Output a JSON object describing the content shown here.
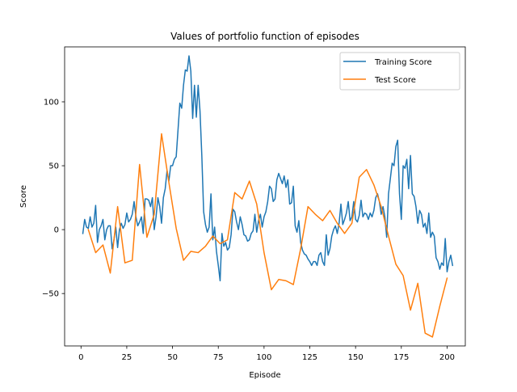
{
  "chart_data": {
    "type": "line",
    "title": "Values of portfolio function of episodes",
    "xlabel": "Episode",
    "ylabel": "Score",
    "xlim": [
      -8.95,
      209.95
    ],
    "ylim": [
      -91.0,
      143.0
    ],
    "xticks": [
      0,
      25,
      50,
      75,
      100,
      125,
      150,
      175,
      200
    ],
    "yticks": [
      -50,
      0,
      50,
      100
    ],
    "grid": false,
    "legend_position": "upper right",
    "series": [
      {
        "name": "Training Score",
        "color": "#1f77b4",
        "points": [
          [
            1,
            -3
          ],
          [
            2,
            8
          ],
          [
            3,
            2
          ],
          [
            4,
            1
          ],
          [
            5,
            10
          ],
          [
            6,
            2
          ],
          [
            7,
            5
          ],
          [
            8,
            19
          ],
          [
            9,
            -10
          ],
          [
            10,
            0
          ],
          [
            11,
            3
          ],
          [
            12,
            8
          ],
          [
            13,
            -8
          ],
          [
            14,
            0
          ],
          [
            15,
            3
          ],
          [
            16,
            3
          ],
          [
            17,
            -15
          ],
          [
            18,
            -8
          ],
          [
            19,
            2
          ],
          [
            20,
            -14
          ],
          [
            21,
            0
          ],
          [
            22,
            5
          ],
          [
            23,
            1
          ],
          [
            24,
            4
          ],
          [
            25,
            13
          ],
          [
            26,
            6
          ],
          [
            27,
            8
          ],
          [
            28,
            12
          ],
          [
            29,
            22
          ],
          [
            30,
            10
          ],
          [
            31,
            3
          ],
          [
            32,
            6
          ],
          [
            33,
            10
          ],
          [
            34,
            -3
          ],
          [
            35,
            24
          ],
          [
            36,
            24
          ],
          [
            37,
            23
          ],
          [
            38,
            18
          ],
          [
            39,
            25
          ],
          [
            40,
            0
          ],
          [
            41,
            10
          ],
          [
            42,
            25
          ],
          [
            43,
            18
          ],
          [
            44,
            5
          ],
          [
            45,
            25
          ],
          [
            46,
            32
          ],
          [
            47,
            46
          ],
          [
            48,
            38
          ],
          [
            49,
            50
          ],
          [
            50,
            50
          ],
          [
            51,
            55
          ],
          [
            52,
            57
          ],
          [
            53,
            78
          ],
          [
            54,
            99
          ],
          [
            55,
            95
          ],
          [
            56,
            113
          ],
          [
            57,
            125
          ],
          [
            58,
            124
          ],
          [
            59,
            136
          ],
          [
            60,
            124
          ],
          [
            61,
            87
          ],
          [
            62,
            113
          ],
          [
            63,
            88
          ],
          [
            64,
            113
          ],
          [
            65,
            93
          ],
          [
            66,
            58
          ],
          [
            67,
            14
          ],
          [
            68,
            4
          ],
          [
            69,
            -2
          ],
          [
            70,
            2
          ],
          [
            71,
            28
          ],
          [
            72,
            -8
          ],
          [
            73,
            2
          ],
          [
            74,
            -17
          ],
          [
            75,
            -28
          ],
          [
            76,
            -40
          ],
          [
            77,
            -3
          ],
          [
            78,
            -13
          ],
          [
            79,
            -10
          ],
          [
            80,
            -16
          ],
          [
            81,
            -14
          ],
          [
            82,
            -4
          ],
          [
            83,
            16
          ],
          [
            84,
            14
          ],
          [
            85,
            6
          ],
          [
            86,
            0
          ],
          [
            87,
            10
          ],
          [
            88,
            4
          ],
          [
            89,
            -4
          ],
          [
            90,
            -5
          ],
          [
            91,
            -9
          ],
          [
            92,
            -8
          ],
          [
            93,
            -3
          ],
          [
            94,
            -1
          ],
          [
            95,
            12
          ],
          [
            96,
            -2
          ],
          [
            97,
            7
          ],
          [
            98,
            12
          ],
          [
            99,
            2
          ],
          [
            100,
            10
          ],
          [
            101,
            14
          ],
          [
            102,
            22
          ],
          [
            103,
            34
          ],
          [
            104,
            32
          ],
          [
            105,
            22
          ],
          [
            106,
            24
          ],
          [
            107,
            39
          ],
          [
            108,
            44
          ],
          [
            109,
            40
          ],
          [
            110,
            36
          ],
          [
            111,
            42
          ],
          [
            112,
            33
          ],
          [
            113,
            39
          ],
          [
            114,
            20
          ],
          [
            115,
            21
          ],
          [
            116,
            34
          ],
          [
            117,
            3
          ],
          [
            118,
            -2
          ],
          [
            119,
            7
          ],
          [
            120,
            -10
          ],
          [
            121,
            -16
          ],
          [
            122,
            -19
          ],
          [
            123,
            -20
          ],
          [
            124,
            -23
          ],
          [
            125,
            -25
          ],
          [
            126,
            -28
          ],
          [
            127,
            -25
          ],
          [
            128,
            -25
          ],
          [
            129,
            -28
          ],
          [
            130,
            -20
          ],
          [
            131,
            -18
          ],
          [
            132,
            -25
          ],
          [
            133,
            -28
          ],
          [
            134,
            -4
          ],
          [
            135,
            -20
          ],
          [
            136,
            -15
          ],
          [
            137,
            -5
          ],
          [
            138,
            0
          ],
          [
            139,
            3
          ],
          [
            140,
            -3
          ],
          [
            141,
            5
          ],
          [
            142,
            20
          ],
          [
            143,
            4
          ],
          [
            144,
            8
          ],
          [
            145,
            13
          ],
          [
            146,
            22
          ],
          [
            147,
            7
          ],
          [
            148,
            10
          ],
          [
            149,
            22
          ],
          [
            150,
            8
          ],
          [
            151,
            6
          ],
          [
            152,
            11
          ],
          [
            153,
            23
          ],
          [
            154,
            10
          ],
          [
            155,
            13
          ],
          [
            156,
            12
          ],
          [
            157,
            8
          ],
          [
            158,
            13
          ],
          [
            159,
            10
          ],
          [
            160,
            15
          ],
          [
            161,
            25
          ],
          [
            162,
            28
          ],
          [
            163,
            22
          ],
          [
            164,
            12
          ],
          [
            165,
            18
          ],
          [
            166,
            10
          ],
          [
            167,
            -6
          ],
          [
            168,
            28
          ],
          [
            169,
            40
          ],
          [
            170,
            52
          ],
          [
            171,
            50
          ],
          [
            172,
            65
          ],
          [
            173,
            70
          ],
          [
            174,
            28
          ],
          [
            175,
            8
          ],
          [
            176,
            50
          ],
          [
            177,
            48
          ],
          [
            178,
            55
          ],
          [
            179,
            32
          ],
          [
            180,
            58
          ],
          [
            181,
            28
          ],
          [
            182,
            26
          ],
          [
            183,
            18
          ],
          [
            184,
            5
          ],
          [
            185,
            15
          ],
          [
            186,
            12
          ],
          [
            187,
            2
          ],
          [
            188,
            5
          ],
          [
            189,
            -3
          ],
          [
            190,
            13
          ],
          [
            191,
            -6
          ],
          [
            192,
            -2
          ],
          [
            193,
            -5
          ],
          [
            194,
            -22
          ],
          [
            195,
            -25
          ],
          [
            196,
            -31
          ],
          [
            197,
            -26
          ],
          [
            198,
            -28
          ],
          [
            199,
            -7
          ],
          [
            200,
            -33
          ],
          [
            201,
            -25
          ],
          [
            202,
            -20
          ],
          [
            203,
            -28
          ]
        ]
      },
      {
        "name": "Test Score",
        "color": "#ff7f0e",
        "points": [
          [
            4,
            0
          ],
          [
            8,
            -18
          ],
          [
            12,
            -12
          ],
          [
            16,
            -34
          ],
          [
            20,
            18
          ],
          [
            24,
            -26
          ],
          [
            28,
            -24
          ],
          [
            32,
            51
          ],
          [
            36,
            -6
          ],
          [
            40,
            12
          ],
          [
            44,
            75
          ],
          [
            48,
            37
          ],
          [
            52,
            1
          ],
          [
            56,
            -24
          ],
          [
            60,
            -17
          ],
          [
            64,
            -18
          ],
          [
            68,
            -13
          ],
          [
            72,
            -5
          ],
          [
            76,
            -11
          ],
          [
            80,
            -8
          ],
          [
            84,
            29
          ],
          [
            88,
            24
          ],
          [
            92,
            38
          ],
          [
            96,
            20
          ],
          [
            100,
            -18
          ],
          [
            104,
            -47
          ],
          [
            108,
            -39
          ],
          [
            112,
            -40
          ],
          [
            116,
            -43
          ],
          [
            120,
            -15
          ],
          [
            124,
            18
          ],
          [
            128,
            12
          ],
          [
            132,
            7
          ],
          [
            136,
            15
          ],
          [
            140,
            5
          ],
          [
            144,
            -3
          ],
          [
            148,
            5
          ],
          [
            152,
            41
          ],
          [
            156,
            47
          ],
          [
            160,
            35
          ],
          [
            164,
            18
          ],
          [
            168,
            -5
          ],
          [
            172,
            -27
          ],
          [
            176,
            -36
          ],
          [
            180,
            -63
          ],
          [
            184,
            -42
          ],
          [
            188,
            -81
          ],
          [
            192,
            -84
          ],
          [
            196,
            -60
          ],
          [
            200,
            -38
          ]
        ]
      }
    ]
  }
}
